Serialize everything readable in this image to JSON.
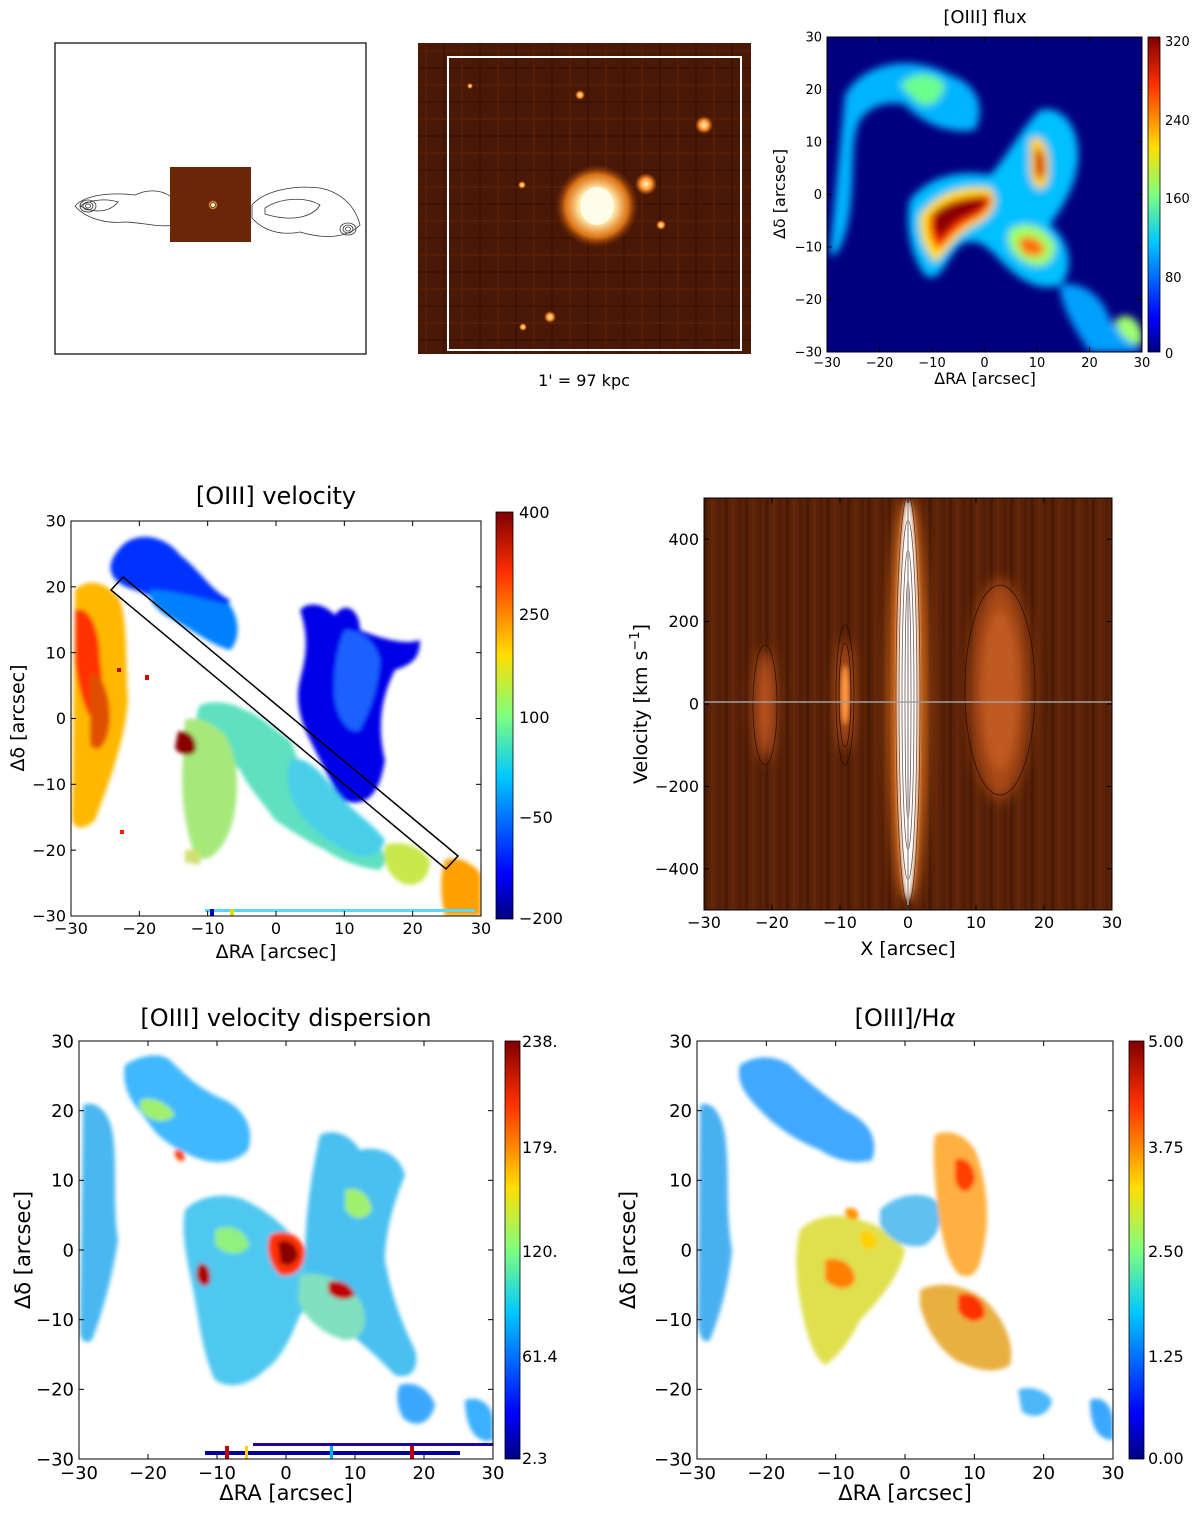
{
  "colors": {
    "jet": [
      "#00007f",
      "#0000ff",
      "#007fff",
      "#00ffff",
      "#7fff7f",
      "#ffff00",
      "#ff7f00",
      "#ff0000",
      "#7f0000"
    ],
    "background": "#ffffff",
    "image_dark": "#3a1406",
    "image_mid": "#7a2e0a",
    "galaxy_core": "#fff6d8"
  },
  "panels": {
    "radio_contours": {
      "description_hidden": true
    },
    "optical_image": {
      "scale_label": "1' = 97 kpc"
    },
    "oiii_flux": {
      "title": "[OIII] flux",
      "xlabel": "ΔRA [arcsec]",
      "ylabel": "Δδ [arcsec]",
      "colorbar_ticks": [
        "320",
        "240",
        "160",
        "80",
        "0"
      ]
    },
    "oiii_velocity": {
      "title": "[OIII] velocity",
      "xlabel": "ΔRA [arcsec]",
      "ylabel": "Δδ [arcsec]",
      "colorbar_ticks": [
        "400",
        "250",
        "100",
        "−50",
        "−200"
      ]
    },
    "pv_diagram": {
      "xlabel": "X [arcsec]",
      "ylabel_main": "Velocity [km s",
      "ylabel_sup": "−1",
      "ylabel_close": "]"
    },
    "oiii_dispersion": {
      "title": "[OIII] velocity dispersion",
      "xlabel": "ΔRA [arcsec]",
      "ylabel": "Δδ [arcsec]",
      "colorbar_ticks": [
        "238.",
        "179.",
        "120.",
        "61.4",
        "2.3"
      ]
    },
    "oiii_halpha": {
      "title_main": "[OIII]/H",
      "title_sym": "α",
      "xlabel": "ΔRA [arcsec]",
      "ylabel": "Δδ [arcsec]",
      "colorbar_ticks": [
        "5.00",
        "3.75",
        "2.50",
        "1.25",
        "0.00"
      ]
    }
  },
  "chart_data": [
    {
      "type": "heatmap",
      "title": "[OIII] flux",
      "xlabel": "ΔRA [arcsec]",
      "ylabel": "Δδ [arcsec]",
      "xlim": [
        -30,
        30
      ],
      "ylim": [
        -30,
        30
      ],
      "xticks": [
        -30,
        -20,
        -10,
        0,
        10,
        20,
        30
      ],
      "yticks": [
        -30,
        -20,
        -10,
        0,
        10,
        20,
        30
      ],
      "colorbar": {
        "range": [
          0,
          320
        ],
        "ticks": [
          0,
          80,
          160,
          240,
          320
        ]
      }
    },
    {
      "type": "heatmap",
      "title": "[OIII] velocity",
      "xlabel": "ΔRA [arcsec]",
      "ylabel": "Δδ [arcsec]",
      "xlim": [
        -30,
        30
      ],
      "ylim": [
        -30,
        30
      ],
      "xticks": [
        -30,
        -20,
        -10,
        0,
        10,
        20,
        30
      ],
      "yticks": [
        -30,
        -20,
        -10,
        0,
        10,
        20,
        30
      ],
      "colorbar": {
        "range": [
          -200,
          400
        ],
        "ticks": [
          -200,
          -50,
          100,
          250,
          400
        ]
      },
      "annotation": "rectangular slit from (-24, 21) to (26, -21)"
    },
    {
      "type": "heatmap",
      "title": "",
      "xlabel": "X [arcsec]",
      "ylabel": "Velocity [km s−1]",
      "xlim": [
        -30,
        30
      ],
      "ylim": [
        -500,
        500
      ],
      "xticks": [
        -30,
        -20,
        -10,
        0,
        10,
        20,
        30
      ],
      "yticks": [
        -400,
        -200,
        0,
        200,
        400
      ],
      "reference_lines": {
        "x": 0,
        "y": 0
      }
    },
    {
      "type": "heatmap",
      "title": "[OIII] velocity dispersion",
      "xlabel": "ΔRA [arcsec]",
      "ylabel": "Δδ [arcsec]",
      "xlim": [
        -30,
        30
      ],
      "ylim": [
        -30,
        30
      ],
      "xticks": [
        -30,
        -20,
        -10,
        0,
        10,
        20,
        30
      ],
      "yticks": [
        -30,
        -20,
        -10,
        0,
        10,
        20,
        30
      ],
      "colorbar": {
        "range": [
          2.3,
          238
        ],
        "ticks": [
          2.3,
          61.4,
          120,
          179,
          238
        ]
      }
    },
    {
      "type": "heatmap",
      "title": "[OIII]/Hα",
      "xlabel": "ΔRA [arcsec]",
      "ylabel": "Δδ [arcsec]",
      "xlim": [
        -30,
        30
      ],
      "ylim": [
        -30,
        30
      ],
      "xticks": [
        -30,
        -20,
        -10,
        0,
        10,
        20,
        30
      ],
      "yticks": [
        -30,
        -20,
        -10,
        0,
        10,
        20,
        30
      ],
      "colorbar": {
        "range": [
          0,
          5
        ],
        "ticks": [
          0.0,
          1.25,
          2.5,
          3.75,
          5.0
        ]
      }
    }
  ]
}
